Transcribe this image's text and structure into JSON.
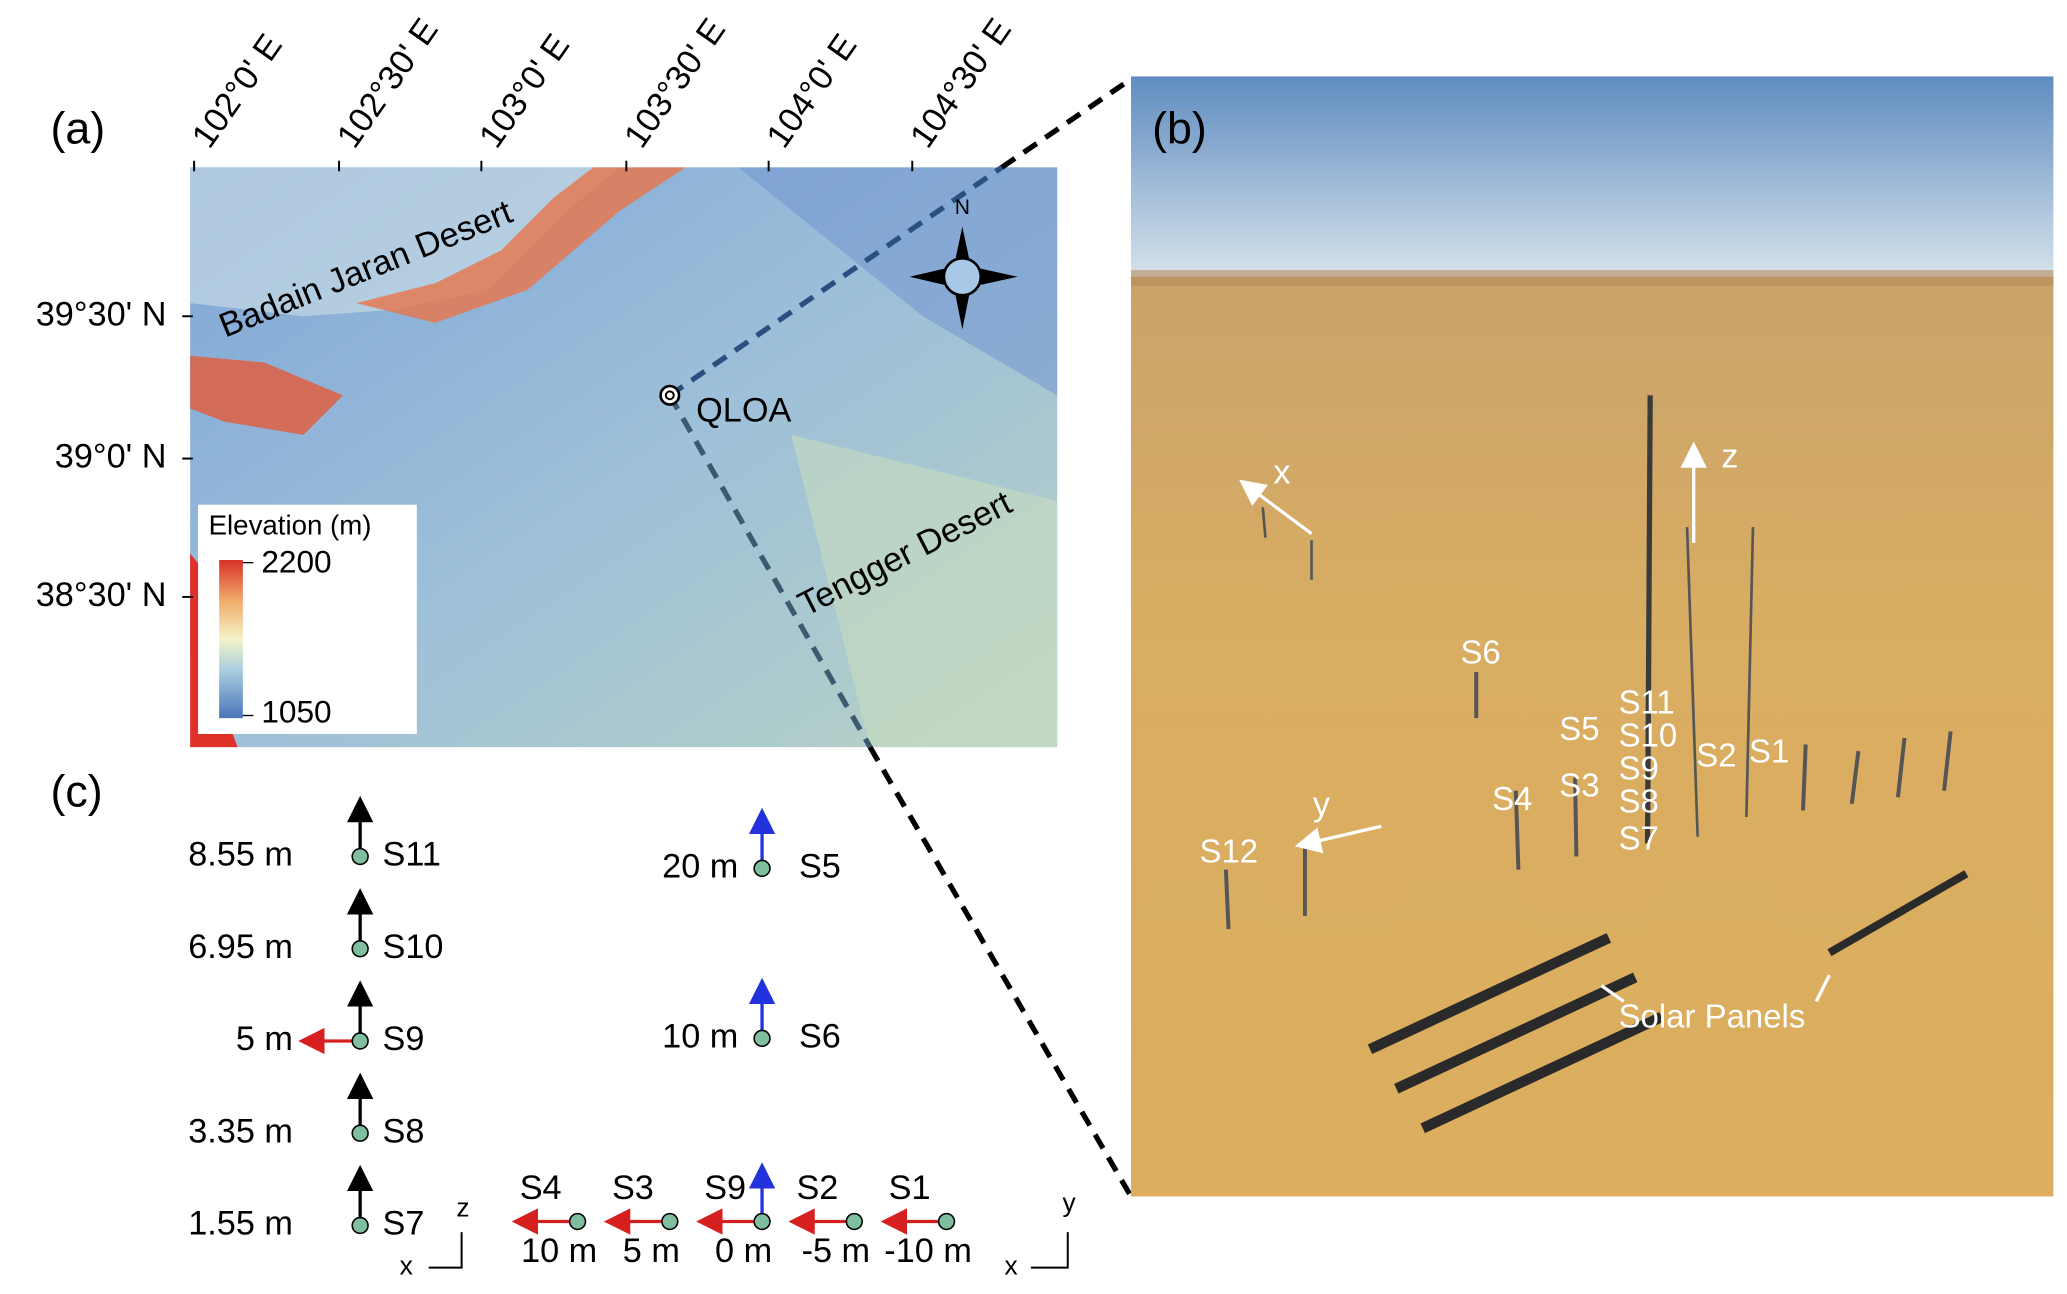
{
  "panel_a": {
    "label": "(a)",
    "lon_ticks": [
      "102°0' E",
      "102°30' E",
      "103°0' E",
      "103°30' E",
      "104°0' E",
      "104°30' E"
    ],
    "lat_ticks": [
      "39°30' N",
      "39°0' N",
      "38°30' N"
    ],
    "places": [
      "Badain Jaran Desert",
      "Tengger Desert",
      "QLOA"
    ],
    "compass": "N",
    "legend": {
      "title": "Elevation (m)",
      "max": 2200,
      "min": 1050
    }
  },
  "panel_b": {
    "label": "(b)",
    "axes": [
      "x",
      "z",
      "y"
    ],
    "stations": [
      "S6",
      "S11",
      "S5",
      "S10",
      "S9",
      "S2",
      "S1",
      "S3",
      "S8",
      "S4",
      "S7",
      "S12"
    ],
    "annotation": "Solar Panels"
  },
  "panel_c": {
    "label": "(c)",
    "vertical": [
      {
        "height": "8.55 m",
        "station": "S11"
      },
      {
        "height": "6.95 m",
        "station": "S10"
      },
      {
        "height": "5 m",
        "station": "S9"
      },
      {
        "height": "3.35 m",
        "station": "S8"
      },
      {
        "height": "1.55 m",
        "station": "S7"
      }
    ],
    "tower": [
      {
        "height": "20 m",
        "station": "S5"
      },
      {
        "height": "10 m",
        "station": "S6"
      }
    ],
    "horizontal": [
      {
        "station": "S4",
        "offset": "10 m"
      },
      {
        "station": "S3",
        "offset": "5 m"
      },
      {
        "station": "S9",
        "offset": "0 m"
      },
      {
        "station": "S2",
        "offset": "-5 m"
      },
      {
        "station": "S1",
        "offset": "-10 m"
      }
    ],
    "axes_left": [
      "z",
      "x"
    ],
    "axes_right": [
      "y",
      "x"
    ]
  }
}
